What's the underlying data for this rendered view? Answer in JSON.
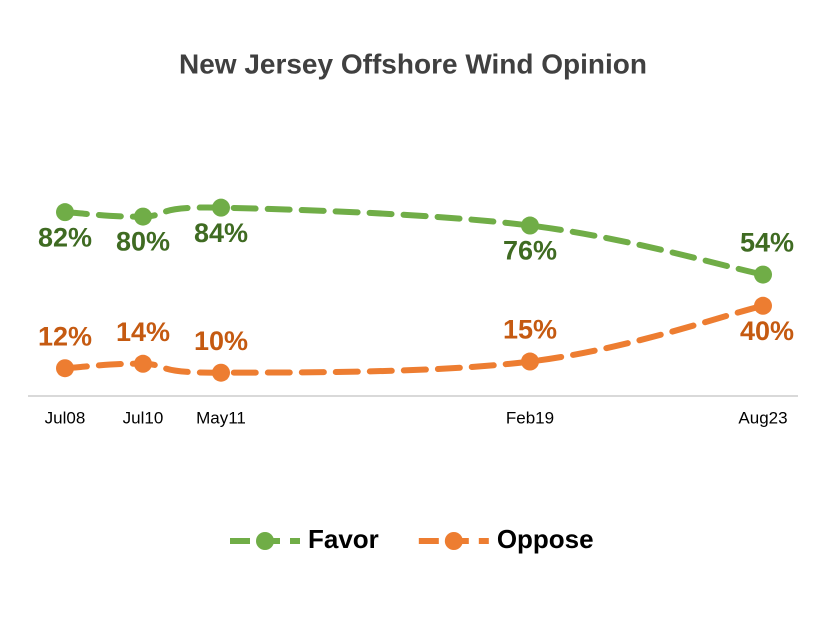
{
  "chart_data": {
    "type": "line",
    "title": "New Jersey Offshore Wind Opinion",
    "categories": [
      "Jul08",
      "Jul10",
      "May11",
      "Feb19",
      "Aug23"
    ],
    "series": [
      {
        "name": "Favor",
        "color": "#70ad47",
        "label_color": "#3f6b22",
        "values": [
          82,
          80,
          84,
          76,
          54
        ],
        "value_labels": [
          "82%",
          "80%",
          "84%",
          "76%",
          "54%"
        ]
      },
      {
        "name": "Oppose",
        "color": "#ed7d31",
        "label_color": "#c55a11",
        "values": [
          12,
          14,
          10,
          15,
          40
        ],
        "value_labels": [
          "12%",
          "14%",
          "10%",
          "15%",
          "40%"
        ]
      }
    ],
    "legend": "bottom"
  }
}
